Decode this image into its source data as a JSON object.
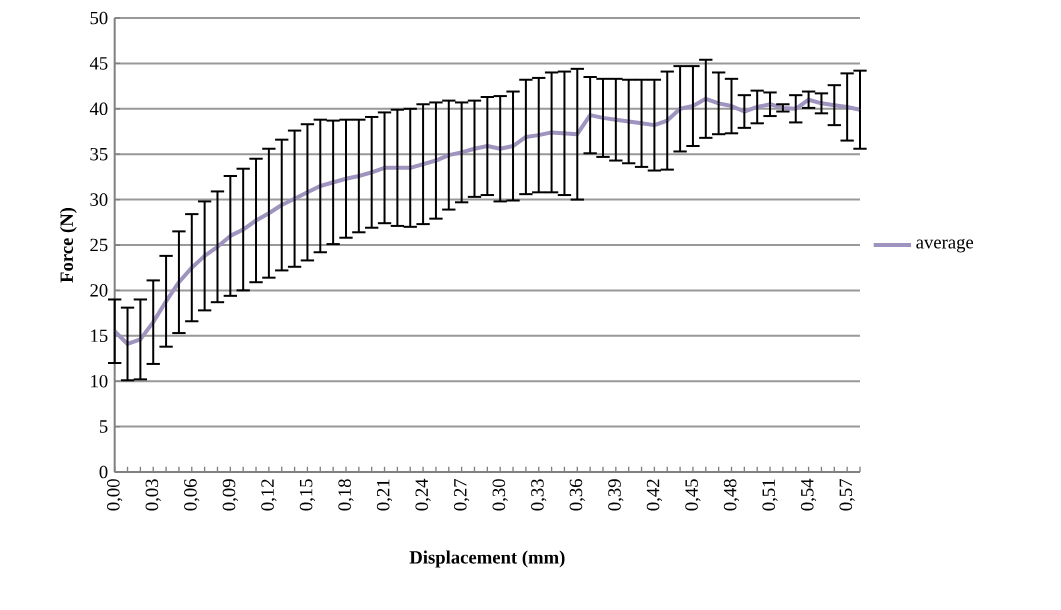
{
  "chart_data": {
    "type": "line",
    "xlabel": "Displacement (mm)",
    "ylabel": "Force (N)",
    "categories": [
      "0,00",
      null,
      null,
      "0,03",
      null,
      null,
      "0,06",
      null,
      null,
      "0,09",
      null,
      null,
      "0,12",
      null,
      null,
      "0,15",
      null,
      null,
      "0,18",
      null,
      null,
      "0,21",
      null,
      null,
      "0,24",
      null,
      null,
      "0,27",
      null,
      null,
      "0,30",
      null,
      null,
      "0,33",
      null,
      null,
      "0,36",
      null,
      null,
      "0,39",
      null,
      null,
      "0,42",
      null,
      null,
      "0,45",
      null,
      null,
      "0,48",
      null,
      null,
      "0,51",
      null,
      null,
      "0,54",
      null,
      null,
      "0,57",
      null
    ],
    "series": [
      {
        "name": "average",
        "color": "#9f93bf",
        "values": [
          15.5,
          14.1,
          14.6,
          16.5,
          18.8,
          20.9,
          22.5,
          23.8,
          24.8,
          26.0,
          26.7,
          27.7,
          28.5,
          29.4,
          30.1,
          30.8,
          31.5,
          31.9,
          32.3,
          32.6,
          33.0,
          33.5,
          33.5,
          33.5,
          33.9,
          34.3,
          34.9,
          35.2,
          35.6,
          35.9,
          35.6,
          35.9,
          36.9,
          37.1,
          37.4,
          37.3,
          37.2,
          39.3,
          39.0,
          38.8,
          38.6,
          38.4,
          38.2,
          38.7,
          40.0,
          40.3,
          41.1,
          40.6,
          40.3,
          39.7,
          40.2,
          40.5,
          40.1,
          40.0,
          41.0,
          40.6,
          40.4,
          40.2,
          39.9
        ],
        "errors": [
          3.5,
          4.0,
          4.4,
          4.6,
          5.0,
          5.6,
          5.9,
          6.0,
          6.1,
          6.6,
          6.7,
          6.8,
          7.1,
          7.2,
          7.5,
          7.5,
          7.3,
          6.8,
          6.5,
          6.2,
          6.1,
          6.1,
          6.4,
          6.5,
          6.6,
          6.4,
          6.0,
          5.5,
          5.3,
          5.4,
          5.8,
          6.0,
          6.3,
          6.3,
          6.6,
          6.8,
          7.2,
          4.2,
          4.3,
          4.5,
          4.6,
          4.8,
          5.0,
          5.4,
          4.7,
          4.4,
          4.3,
          3.4,
          3.0,
          1.8,
          1.8,
          1.3,
          0.4,
          1.5,
          0.9,
          1.1,
          2.2,
          3.7,
          4.3
        ]
      }
    ],
    "ylim": [
      0,
      50
    ],
    "yticks": [
      0,
      5,
      10,
      15,
      20,
      25,
      30,
      35,
      40,
      45,
      50
    ],
    "grid": "y",
    "legend": "right",
    "marker": "none",
    "line_style": "solid"
  }
}
